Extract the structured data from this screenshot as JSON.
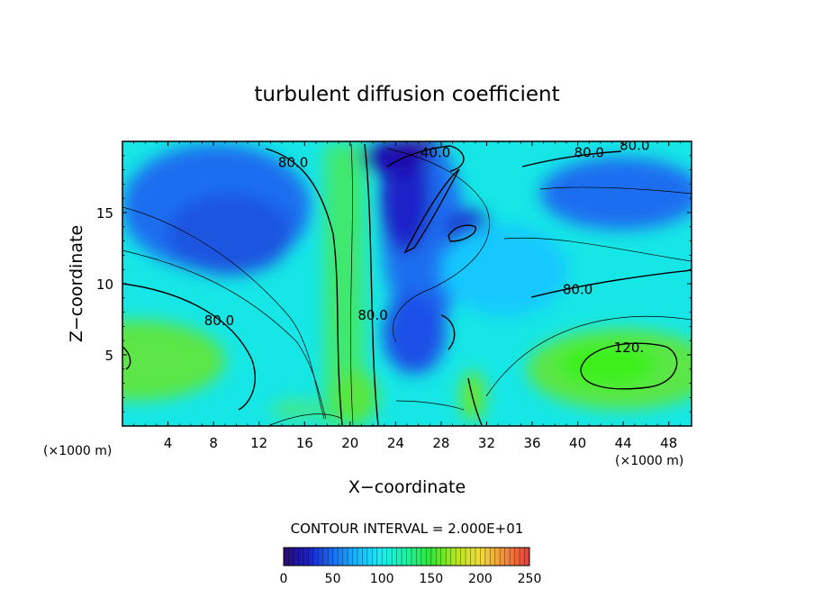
{
  "chart_data": {
    "type": "heatmap",
    "title": "turbulent diffusion coefficient",
    "xlabel": "X−coordinate",
    "ylabel": "Z−coordinate",
    "x_unit_left": "(×1000 m)",
    "x_unit_right": "(×1000 m)",
    "xlim": [
      0,
      50
    ],
    "ylim": [
      0,
      20
    ],
    "xticks": [
      4,
      8,
      12,
      16,
      20,
      24,
      28,
      32,
      36,
      40,
      44,
      48
    ],
    "yticks": [
      5,
      10,
      15
    ],
    "contour_interval_text": "CONTOUR INTERVAL = 2.000E+01",
    "contour_labels": [
      {
        "text": "80.0",
        "x": 15.0,
        "z": 18.5
      },
      {
        "text": "40.0",
        "x": 27.5,
        "z": 19.2
      },
      {
        "text": "80.0",
        "x": 41.0,
        "z": 19.2
      },
      {
        "text": "80.0",
        "x": 45.0,
        "z": 19.7
      },
      {
        "text": "80.0",
        "x": 8.5,
        "z": 7.4
      },
      {
        "text": "80.0",
        "x": 22.0,
        "z": 7.8
      },
      {
        "text": "80.0",
        "x": 40.0,
        "z": 9.6
      },
      {
        "text": "120.",
        "x": 44.5,
        "z": 5.5
      }
    ],
    "colorbar": {
      "min": 0,
      "max": 250,
      "ticks": [
        0,
        50,
        100,
        150,
        200,
        250
      ],
      "colors": [
        "#2a0a6e",
        "#1a20c8",
        "#1a6ef0",
        "#19b8ff",
        "#19f0f0",
        "#1ef0a0",
        "#32e632",
        "#b4e61e",
        "#f0dc3c",
        "#f08c3c",
        "#e63c3c"
      ]
    },
    "grid": false
  }
}
